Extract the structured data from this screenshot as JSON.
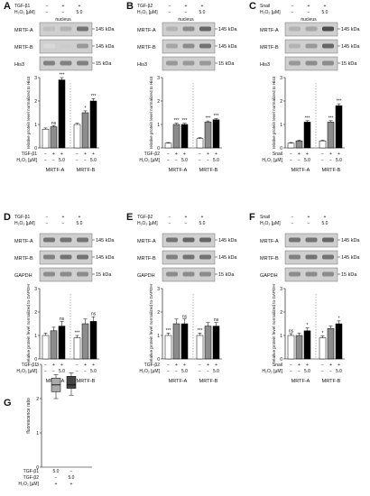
{
  "figure": {
    "panels": [
      {
        "letter": "A",
        "treatments": [
          {
            "label": "TGF-β1",
            "marks": [
              "−",
              "+",
              "+"
            ]
          },
          {
            "label": "H₂O₂ [µM]",
            "marks": [
              "−",
              "−",
              "5.0"
            ]
          }
        ],
        "fraction": "nucleus",
        "blots": [
          "MRTF-A",
          "MRTF-B",
          "His3"
        ],
        "markers": [
          "145 kDa",
          "145 kDa",
          "15 kDa"
        ],
        "ylabel": "relative protein level normalized to His3",
        "xgroups": [
          "MRTF-A",
          "MRTF-B"
        ],
        "bottom": [
          {
            "label": "TGF-β1",
            "marks": [
              "−",
              "+",
              "+",
              "−",
              "+",
              "+"
            ]
          },
          {
            "label": "H₂O₂ [µM]",
            "marks": [
              "−",
              "−",
              "5.0",
              "−",
              "−",
              "5.0"
            ]
          }
        ]
      },
      {
        "letter": "B",
        "treatments": [
          {
            "label": "TGF-β2",
            "marks": [
              "−",
              "+",
              "+"
            ]
          },
          {
            "label": "H₂O₂ [µM]",
            "marks": [
              "−",
              "−",
              "5.0"
            ]
          }
        ],
        "fraction": "nucleus",
        "blots": [
          "MRTF-A",
          "MRTF-B",
          "His3"
        ],
        "markers": [
          "145 kDa",
          "145 kDa",
          "15 kDa"
        ],
        "ylabel": "relative protein level normalized to His3",
        "xgroups": [
          "MRTF-A",
          "MRTF-B"
        ],
        "bottom": [
          {
            "label": "TGF-β2",
            "marks": [
              "−",
              "+",
              "+",
              "−",
              "+",
              "+"
            ]
          },
          {
            "label": "H₂O₂ [µM]",
            "marks": [
              "−",
              "−",
              "5.0",
              "−",
              "−",
              "5.0"
            ]
          }
        ]
      },
      {
        "letter": "C",
        "treatments": [
          {
            "label": "Snail",
            "marks": [
              "−",
              "+",
              "+"
            ]
          },
          {
            "label": "H₂O₂ [µM]",
            "marks": [
              "−",
              "−",
              "5.0"
            ]
          }
        ],
        "fraction": "nucleus",
        "blots": [
          "MRTF-A",
          "MRTF-B",
          "His3"
        ],
        "markers": [
          "145 kDa",
          "145 kDa",
          "15 kDa"
        ],
        "ylabel": "relative protein level normalized to His3",
        "xgroups": [
          "MRTF-A",
          "MRTF-B"
        ],
        "bottom": [
          {
            "label": "Snail",
            "marks": [
              "−",
              "+",
              "+",
              "−",
              "+",
              "+"
            ]
          },
          {
            "label": "H₂O₂ [µM]",
            "marks": [
              "−",
              "−",
              "5.0",
              "−",
              "−",
              "5.0"
            ]
          }
        ]
      },
      {
        "letter": "D",
        "treatments": [
          {
            "label": "TGF-β1",
            "marks": [
              "−",
              "+",
              "+"
            ]
          },
          {
            "label": "H₂O₂ [µM]",
            "marks": [
              "−",
              "−",
              "5.0"
            ]
          }
        ],
        "fraction": "",
        "blots": [
          "MRTF-A",
          "MRTF-B",
          "GAPDH"
        ],
        "markers": [
          "145 kDa",
          "145 kDa",
          "15 kDa"
        ],
        "ylabel": "relative protein level normalized to GAPDH",
        "xgroups": [
          "MRTF-A",
          "MRTF-B"
        ],
        "bottom": [
          {
            "label": "TGF-β1",
            "marks": [
              "−",
              "+",
              "+",
              "−",
              "+",
              "+"
            ]
          },
          {
            "label": "H₂O₂ [µM]",
            "marks": [
              "−",
              "−",
              "5.0",
              "−",
              "−",
              "5.0"
            ]
          }
        ]
      },
      {
        "letter": "E",
        "treatments": [
          {
            "label": "TGF-β2",
            "marks": [
              "−",
              "+",
              "+"
            ]
          },
          {
            "label": "H₂O₂ [µM]",
            "marks": [
              "−",
              "−",
              "5.0"
            ]
          }
        ],
        "fraction": "",
        "blots": [
          "MRTF-A",
          "MRTF-B",
          "GAPDH"
        ],
        "markers": [
          "145 kDa",
          "145 kDa",
          "15 kDa"
        ],
        "ylabel": "relative protein level normalized to GAPDH",
        "xgroups": [
          "MRTF-A",
          "MRTF-B"
        ],
        "bottom": [
          {
            "label": "TGF-β2",
            "marks": [
              "−",
              "+",
              "+",
              "−",
              "+",
              "+"
            ]
          },
          {
            "label": "H₂O₂ [µM]",
            "marks": [
              "−",
              "−",
              "5.0",
              "−",
              "−",
              "5.0"
            ]
          }
        ]
      },
      {
        "letter": "F",
        "treatments": [
          {
            "label": "Snail",
            "marks": [
              "−",
              "+",
              "+"
            ]
          },
          {
            "label": "H₂O₂ [µM]",
            "marks": [
              "−",
              "−",
              "5.0"
            ]
          }
        ],
        "fraction": "",
        "blots": [
          "MRTF-A",
          "MRTF-B",
          "GAPDH"
        ],
        "markers": [
          "145 kDa",
          "145 kDa",
          "15 kDa"
        ],
        "ylabel": "relative protein level normalized to GAPDH",
        "xgroups": [
          "MRTF-A",
          "MRTF-B"
        ],
        "bottom": [
          {
            "label": "Snail",
            "marks": [
              "−",
              "+",
              "+",
              "−",
              "+",
              "+"
            ]
          },
          {
            "label": "H₂O₂ [µM]",
            "marks": [
              "−",
              "−",
              "5.0",
              "−",
              "−",
              "5.0"
            ]
          }
        ]
      }
    ],
    "panel_g": {
      "letter": "G",
      "ylabel": "fluorescence ratio",
      "bottom": [
        {
          "label": "TGF-β1",
          "marks": [
            "5.0",
            "−"
          ]
        },
        {
          "label": "TGF-β2",
          "marks": [
            "−",
            "5.0"
          ]
        },
        {
          "label": "H₂O₂ [µM]",
          "marks": [
            "+",
            "+"
          ]
        }
      ]
    }
  },
  "chart_data": [
    {
      "panel": "A",
      "type": "bar",
      "categories": [
        "MRTF-A",
        "MRTF-A",
        "MRTF-A",
        "MRTF-B",
        "MRTF-B",
        "MRTF-B"
      ],
      "values": [
        0.8,
        0.9,
        2.9,
        1.0,
        1.5,
        2.0
      ],
      "errors": [
        0.05,
        0.05,
        0.1,
        0.05,
        0.08,
        0.1
      ],
      "annotations": [
        "",
        "ns",
        "***",
        "",
        "*",
        "***"
      ],
      "ylim": [
        0,
        3
      ],
      "yticks": [
        0,
        1,
        2,
        3
      ],
      "fills": [
        "#ffffff",
        "#8c8c8c",
        "#000000",
        "#ffffff",
        "#8c8c8c",
        "#000000"
      ]
    },
    {
      "panel": "B",
      "type": "bar",
      "categories": [
        "MRTF-A",
        "MRTF-A",
        "MRTF-A",
        "MRTF-B",
        "MRTF-B",
        "MRTF-B"
      ],
      "values": [
        0.2,
        1.0,
        1.0,
        0.4,
        1.1,
        1.2
      ],
      "errors": [
        0.03,
        0.05,
        0.05,
        0.04,
        0.05,
        0.05
      ],
      "annotations": [
        "",
        "***",
        "***",
        "",
        "***",
        "***"
      ],
      "ylim": [
        0,
        3
      ],
      "yticks": [
        0,
        1,
        2,
        3
      ],
      "fills": [
        "#ffffff",
        "#8c8c8c",
        "#000000",
        "#ffffff",
        "#8c8c8c",
        "#000000"
      ]
    },
    {
      "panel": "C",
      "type": "bar",
      "categories": [
        "MRTF-A",
        "MRTF-A",
        "MRTF-A",
        "MRTF-B",
        "MRTF-B",
        "MRTF-B"
      ],
      "values": [
        0.2,
        0.3,
        1.1,
        0.3,
        1.1,
        1.8
      ],
      "errors": [
        0.03,
        0.03,
        0.06,
        0.03,
        0.06,
        0.08
      ],
      "annotations": [
        "",
        "",
        "***",
        "",
        "***",
        "***"
      ],
      "ylim": [
        0,
        3
      ],
      "yticks": [
        0,
        1,
        2,
        3
      ],
      "fills": [
        "#ffffff",
        "#8c8c8c",
        "#000000",
        "#ffffff",
        "#8c8c8c",
        "#000000"
      ]
    },
    {
      "panel": "D",
      "type": "bar",
      "categories": [
        "MRTF-A",
        "MRTF-A",
        "MRTF-A",
        "MRTF-B",
        "MRTF-B",
        "MRTF-B"
      ],
      "values": [
        1.0,
        1.2,
        1.4,
        0.9,
        1.5,
        1.6
      ],
      "errors": [
        0.1,
        0.15,
        0.2,
        0.1,
        0.2,
        0.2
      ],
      "annotations": [
        "",
        "",
        "ns",
        "***",
        "",
        "ns"
      ],
      "ylim": [
        0,
        3
      ],
      "yticks": [
        0,
        1,
        2,
        3
      ],
      "fills": [
        "#ffffff",
        "#8c8c8c",
        "#000000",
        "#ffffff",
        "#8c8c8c",
        "#000000"
      ]
    },
    {
      "panel": "E",
      "type": "bar",
      "categories": [
        "MRTF-A",
        "MRTF-A",
        "MRTF-A",
        "MRTF-B",
        "MRTF-B",
        "MRTF-B"
      ],
      "values": [
        1.0,
        1.5,
        1.5,
        1.0,
        1.4,
        1.4
      ],
      "errors": [
        0.1,
        0.2,
        0.2,
        0.1,
        0.15,
        0.15
      ],
      "annotations": [
        "***",
        "",
        "ns",
        "***",
        "",
        "ns"
      ],
      "ylim": [
        0,
        3
      ],
      "yticks": [
        0,
        1,
        2,
        3
      ],
      "fills": [
        "#ffffff",
        "#8c8c8c",
        "#000000",
        "#ffffff",
        "#8c8c8c",
        "#000000"
      ]
    },
    {
      "panel": "F",
      "type": "bar",
      "categories": [
        "MRTF-A",
        "MRTF-A",
        "MRTF-A",
        "MRTF-B",
        "MRTF-B",
        "MRTF-B"
      ],
      "values": [
        1.0,
        1.0,
        1.2,
        0.9,
        1.3,
        1.5
      ],
      "errors": [
        0.08,
        0.1,
        0.12,
        0.08,
        0.1,
        0.12
      ],
      "annotations": [
        "ns",
        "",
        "*",
        "*",
        "",
        "*"
      ],
      "ylim": [
        0,
        3
      ],
      "yticks": [
        0,
        1,
        2,
        3
      ],
      "fills": [
        "#ffffff",
        "#8c8c8c",
        "#000000",
        "#ffffff",
        "#8c8c8c",
        "#000000"
      ]
    },
    {
      "panel": "G",
      "type": "box",
      "categories": [
        "TGF-β1",
        "TGF-β2"
      ],
      "boxes": [
        {
          "whisker_low": 2.0,
          "q1": 2.2,
          "median": 2.4,
          "q3": 2.6,
          "whisker_high": 2.7
        },
        {
          "whisker_low": 2.1,
          "q1": 2.3,
          "median": 2.4,
          "q3": 2.65,
          "whisker_high": 2.75
        }
      ],
      "ylim": [
        0,
        3
      ],
      "yticks": [
        0,
        1,
        2,
        3
      ],
      "fills": [
        "#aaaaaa",
        "#444444"
      ]
    }
  ]
}
